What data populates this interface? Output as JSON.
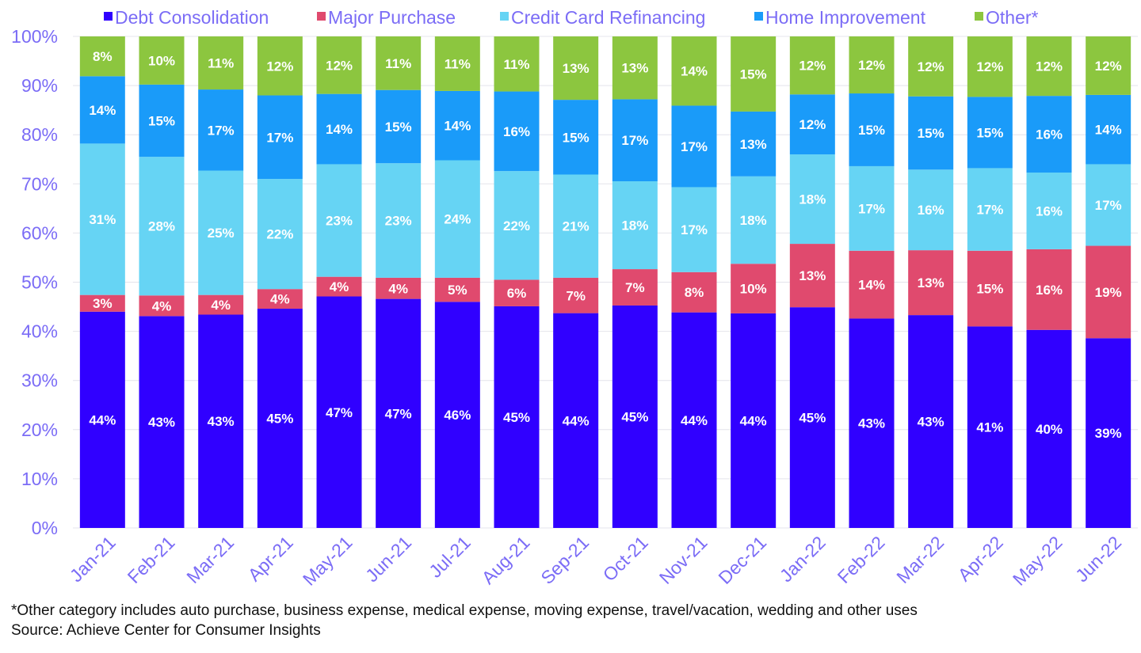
{
  "chart_data": {
    "type": "bar",
    "stacked": true,
    "percent_stacked": true,
    "categories": [
      "Jan-21",
      "Feb-21",
      "Mar-21",
      "Apr-21",
      "May-21",
      "Jun-21",
      "Jul-21",
      "Aug-21",
      "Sep-21",
      "Oct-21",
      "Nov-21",
      "Dec-21",
      "Jan-22",
      "Feb-22",
      "Mar-22",
      "Apr-22",
      "May-22",
      "Jun-22"
    ],
    "series": [
      {
        "name": "Debt Consolidation",
        "color": "#3000FF",
        "values": [
          44,
          43,
          43,
          45,
          47,
          47,
          46,
          45,
          44,
          45,
          44,
          44,
          45,
          43,
          43,
          41,
          40,
          39
        ],
        "labels": [
          "44%",
          "43%",
          "43%",
          "45%",
          "47%",
          "47%",
          "46%",
          "45%",
          "44%",
          "45%",
          "44%",
          "44%",
          "45%",
          "43%",
          "43%",
          "41%",
          "40%",
          "39%"
        ],
        "display": [
          44.0,
          43.1,
          43.4,
          44.6,
          47.1,
          46.6,
          46.0,
          45.1,
          43.7,
          45.3,
          43.9,
          43.7,
          44.9,
          42.6,
          43.3,
          41.0,
          40.3,
          38.6
        ]
      },
      {
        "name": "Major Purchase",
        "color": "#E04A6E",
        "values": [
          3,
          4,
          4,
          4,
          4,
          4,
          5,
          6,
          7,
          7,
          8,
          10,
          13,
          14,
          13,
          15,
          16,
          19
        ],
        "labels": [
          "3%",
          "4%",
          "4%",
          "4%",
          "4%",
          "4%",
          "5%",
          "6%",
          "7%",
          "7%",
          "8%",
          "10%",
          "13%",
          "14%",
          "13%",
          "15%",
          "16%",
          "19%"
        ],
        "display": [
          3.4,
          4.2,
          4.0,
          4.0,
          4.0,
          4.3,
          4.9,
          5.4,
          7.2,
          7.4,
          8.2,
          10.1,
          12.9,
          13.8,
          13.2,
          15.4,
          16.4,
          18.8
        ]
      },
      {
        "name": "Credit Card Refinancing",
        "color": "#66D4F4",
        "values": [
          31,
          28,
          25,
          22,
          23,
          23,
          24,
          22,
          21,
          18,
          17,
          18,
          18,
          17,
          16,
          17,
          16,
          17
        ],
        "labels": [
          "31%",
          "28%",
          "25%",
          "22%",
          "23%",
          "23%",
          "24%",
          "22%",
          "21%",
          "18%",
          "17%",
          "18%",
          "18%",
          "17%",
          "16%",
          "17%",
          "16%",
          "17%"
        ],
        "display": [
          30.8,
          28.2,
          25.3,
          22.4,
          22.9,
          23.3,
          23.9,
          22.1,
          21.0,
          17.9,
          17.3,
          17.8,
          18.2,
          17.2,
          16.4,
          16.8,
          15.6,
          16.6
        ]
      },
      {
        "name": "Home Improvement",
        "color": "#1A9BF9",
        "values": [
          14,
          15,
          17,
          17,
          14,
          15,
          14,
          16,
          15,
          17,
          17,
          13,
          12,
          15,
          15,
          15,
          16,
          14
        ],
        "labels": [
          "14%",
          "15%",
          "17%",
          "17%",
          "14%",
          "15%",
          "14%",
          "16%",
          "15%",
          "17%",
          "17%",
          "13%",
          "12%",
          "15%",
          "15%",
          "15%",
          "16%",
          "14%"
        ],
        "display": [
          13.7,
          14.7,
          16.5,
          17.0,
          14.3,
          14.9,
          14.1,
          16.2,
          15.2,
          16.7,
          16.6,
          13.2,
          12.2,
          14.8,
          14.9,
          14.5,
          15.6,
          14.1
        ]
      },
      {
        "name": "Other*",
        "color": "#8CC63F",
        "values": [
          8,
          10,
          11,
          12,
          12,
          11,
          11,
          11,
          13,
          13,
          14,
          15,
          12,
          12,
          12,
          12,
          12,
          12
        ],
        "labels": [
          "8%",
          "10%",
          "11%",
          "12%",
          "12%",
          "11%",
          "11%",
          "11%",
          "13%",
          "13%",
          "14%",
          "15%",
          "12%",
          "12%",
          "12%",
          "12%",
          "12%",
          "12%"
        ],
        "display": [
          8.1,
          9.8,
          10.8,
          12.0,
          11.7,
          10.9,
          11.1,
          11.2,
          12.9,
          12.8,
          14.1,
          15.3,
          11.8,
          11.6,
          12.2,
          12.3,
          12.1,
          11.9
        ]
      }
    ],
    "ylim": [
      0,
      100
    ],
    "yticks": [
      "0%",
      "10%",
      "20%",
      "30%",
      "40%",
      "50%",
      "60%",
      "70%",
      "80%",
      "90%",
      "100%"
    ],
    "legend_position": "top",
    "grid": "horizontal",
    "title": "",
    "xlabel": "",
    "ylabel": "",
    "colors": {
      "axis_text": "#7B6CF6",
      "grid": "#E4E4EC",
      "data_label": "#FFFFFF"
    }
  },
  "footnotes": {
    "other": "*Other category includes auto purchase, business expense, medical expense, moving expense, travel/vacation, wedding and other uses",
    "source": "Source: Achieve Center for Consumer Insights"
  }
}
